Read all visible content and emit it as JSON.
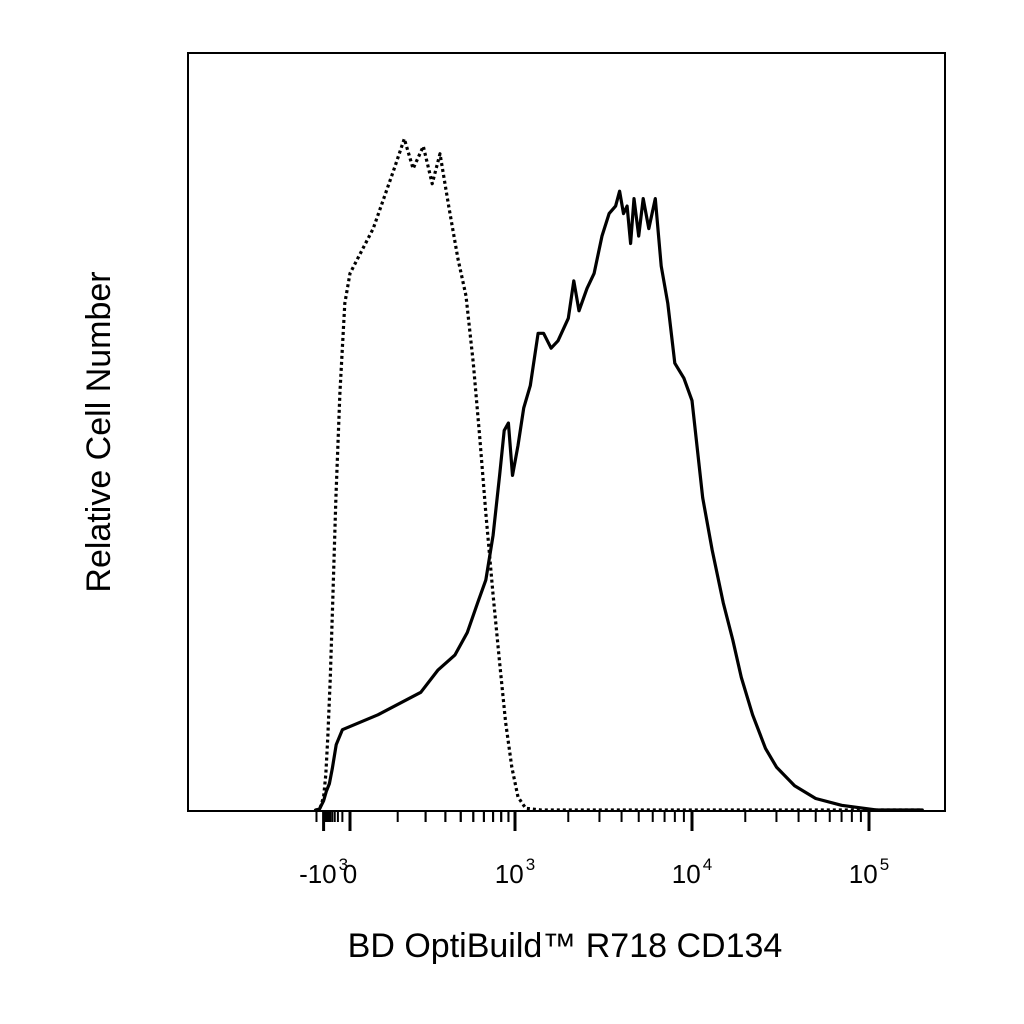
{
  "chart_data": {
    "type": "line",
    "title": "",
    "xlabel": "BD OptiBuild™ R718 CD134",
    "ylabel": "Relative Cell Number",
    "x_scale": "biexponential",
    "x_tick_labels": [
      {
        "base": "-10",
        "exp": "3",
        "value": -1000
      },
      {
        "base": "0",
        "exp": "",
        "value": 0
      },
      {
        "base": "10",
        "exp": "3",
        "value": 1000
      },
      {
        "base": "10",
        "exp": "4",
        "value": 10000
      },
      {
        "base": "10",
        "exp": "5",
        "value": 100000
      }
    ],
    "xlim": [
      -2200,
      200000
    ],
    "ylim": [
      0,
      100
    ],
    "grid": false,
    "legend": "none",
    "series": [
      {
        "style": "dotted",
        "color": "#000000",
        "points": [
          [
            -2200,
            0
          ],
          [
            -1500,
            0.3
          ],
          [
            -1000,
            2
          ],
          [
            -800,
            5
          ],
          [
            -650,
            10
          ],
          [
            -500,
            18
          ],
          [
            -380,
            28
          ],
          [
            -260,
            42
          ],
          [
            -150,
            56
          ],
          [
            -60,
            68
          ],
          [
            0,
            72
          ],
          [
            40,
            78
          ],
          [
            90,
            86
          ],
          [
            120,
            90
          ],
          [
            150,
            86
          ],
          [
            190,
            89
          ],
          [
            230,
            84
          ],
          [
            270,
            88
          ],
          [
            320,
            81
          ],
          [
            380,
            74
          ],
          [
            440,
            69
          ],
          [
            500,
            60
          ],
          [
            560,
            50
          ],
          [
            620,
            40
          ],
          [
            700,
            29
          ],
          [
            780,
            20
          ],
          [
            860,
            12
          ],
          [
            950,
            6
          ],
          [
            1040,
            2
          ],
          [
            1150,
            0.5
          ],
          [
            1400,
            0
          ],
          [
            200000,
            0
          ]
        ]
      },
      {
        "style": "solid",
        "color": "#000000",
        "points": [
          [
            -2200,
            0
          ],
          [
            -1500,
            0.4
          ],
          [
            -1000,
            1.5
          ],
          [
            -750,
            2.8
          ],
          [
            -550,
            3.8
          ],
          [
            -400,
            5.8
          ],
          [
            -250,
            9
          ],
          [
            -100,
            11
          ],
          [
            50,
            13
          ],
          [
            180,
            16
          ],
          [
            260,
            19
          ],
          [
            360,
            21
          ],
          [
            450,
            24
          ],
          [
            540,
            28
          ],
          [
            620,
            31
          ],
          [
            700,
            37
          ],
          [
            780,
            45
          ],
          [
            840,
            51
          ],
          [
            900,
            52
          ],
          [
            960,
            45
          ],
          [
            1040,
            49
          ],
          [
            1120,
            54
          ],
          [
            1220,
            57
          ],
          [
            1350,
            64
          ],
          [
            1450,
            64
          ],
          [
            1600,
            62
          ],
          [
            1750,
            63
          ],
          [
            2000,
            66
          ],
          [
            2150,
            71
          ],
          [
            2300,
            67
          ],
          [
            2550,
            70
          ],
          [
            2800,
            72
          ],
          [
            3100,
            77
          ],
          [
            3400,
            80
          ],
          [
            3700,
            81
          ],
          [
            3900,
            83
          ],
          [
            4100,
            80
          ],
          [
            4300,
            81
          ],
          [
            4500,
            76
          ],
          [
            4700,
            82
          ],
          [
            5000,
            77
          ],
          [
            5300,
            82
          ],
          [
            5700,
            78
          ],
          [
            6200,
            82
          ],
          [
            6700,
            73
          ],
          [
            7300,
            68
          ],
          [
            8000,
            60
          ],
          [
            9000,
            58
          ],
          [
            10000,
            55
          ],
          [
            11500,
            42
          ],
          [
            13000,
            35
          ],
          [
            15000,
            28
          ],
          [
            17000,
            23
          ],
          [
            19000,
            18
          ],
          [
            22000,
            13
          ],
          [
            26000,
            8.5
          ],
          [
            30000,
            6
          ],
          [
            38000,
            3.5
          ],
          [
            50000,
            1.8
          ],
          [
            70000,
            0.9
          ],
          [
            110000,
            0.2
          ],
          [
            200000,
            0
          ]
        ]
      }
    ]
  }
}
